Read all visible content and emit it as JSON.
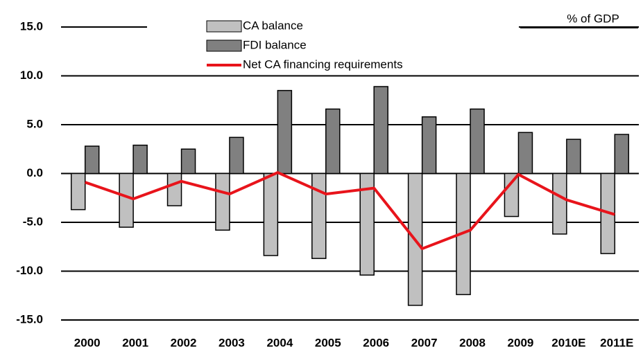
{
  "chart_data": {
    "type": "bar",
    "annotation": "% of GDP",
    "categories": [
      "2000",
      "2001",
      "2002",
      "2003",
      "2004",
      "2005",
      "2006",
      "2007",
      "2008",
      "2009",
      "2010E",
      "2011E"
    ],
    "series": [
      {
        "name": "CA balance",
        "type": "bar",
        "color": "#c0c0c0",
        "values": [
          -3.7,
          -5.5,
          -3.3,
          -5.8,
          -8.4,
          -8.7,
          -10.4,
          -13.5,
          -12.4,
          -4.4,
          -6.2,
          -8.2
        ]
      },
      {
        "name": "FDI balance",
        "type": "bar",
        "color": "#808080",
        "values": [
          2.8,
          2.9,
          2.5,
          3.7,
          8.5,
          6.6,
          8.9,
          5.8,
          6.6,
          4.2,
          3.5,
          4.0
        ]
      },
      {
        "name": "Net CA financing requirements",
        "type": "line",
        "color": "#e8141b",
        "values": [
          -0.9,
          -2.6,
          -0.8,
          -2.1,
          0.1,
          -2.1,
          -1.5,
          -7.7,
          -5.8,
          -0.1,
          -2.7,
          -4.2
        ]
      }
    ],
    "ylim": [
      -15,
      15
    ],
    "yticks": [
      {
        "value": -15,
        "label": "-15.0"
      },
      {
        "value": -10,
        "label": "-10.0"
      },
      {
        "value": -5,
        "label": "-5.0"
      },
      {
        "value": 0,
        "label": "0.0"
      },
      {
        "value": 5,
        "label": "5.0"
      },
      {
        "value": 10,
        "label": "10.0"
      },
      {
        "value": 15,
        "label": "15.0"
      }
    ],
    "grid": true
  }
}
